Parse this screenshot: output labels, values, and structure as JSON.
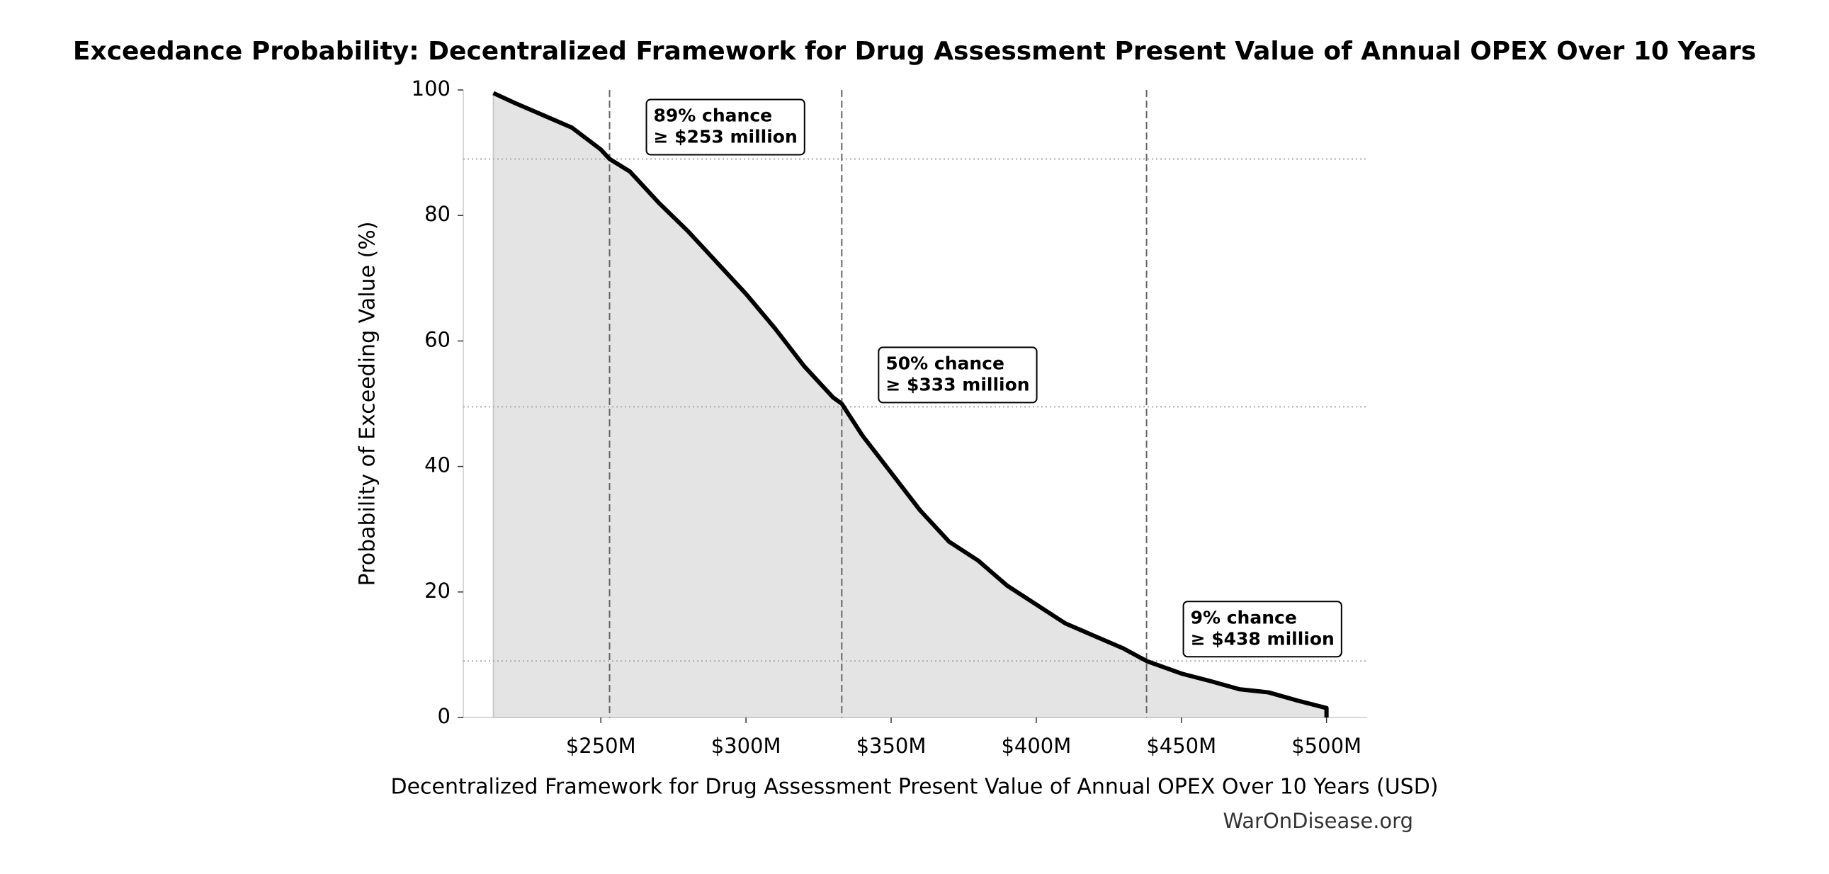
{
  "chart_data": {
    "type": "area-line",
    "title": "Exceedance Probability: Decentralized Framework for Drug Assessment Present Value of Annual OPEX Over 10 Years",
    "x_label": "Decentralized Framework for Drug Assessment Present Value of Annual OPEX Over 10 Years (USD)",
    "y_label": "Probability of Exceeding Value (%)",
    "source": "WarOnDisease.org",
    "x": [
      213,
      220,
      230,
      240,
      250,
      253,
      260,
      270,
      280,
      290,
      300,
      310,
      320,
      330,
      333,
      340,
      350,
      360,
      370,
      380,
      390,
      400,
      410,
      420,
      430,
      438,
      450,
      460,
      470,
      480,
      490,
      500,
      500
    ],
    "values": [
      99.5,
      98,
      96,
      94,
      90.5,
      89,
      87,
      82,
      77.5,
      72.5,
      67.5,
      62,
      56,
      51,
      50,
      45,
      39,
      33,
      28,
      25,
      21,
      18,
      15,
      13,
      11,
      9,
      7,
      5.8,
      4.5,
      4,
      2.7,
      1.5,
      0
    ],
    "color": "#000000",
    "fill": "#e4e4e4",
    "xlim": [
      202.6,
      514
    ],
    "ylim": [
      0,
      100
    ],
    "xticks": [
      {
        "value": 250,
        "label": "$250M"
      },
      {
        "value": 300,
        "label": "$300M"
      },
      {
        "value": 350,
        "label": "$350M"
      },
      {
        "value": 400,
        "label": "$400M"
      },
      {
        "value": 450,
        "label": "$450M"
      },
      {
        "value": 500,
        "label": "$500M"
      }
    ],
    "yticks": [
      0,
      20,
      40,
      60,
      80,
      100
    ],
    "annotations": [
      {
        "x": 253,
        "y": 89,
        "lines": [
          "89% chance",
          "≥ $253 million"
        ]
      },
      {
        "x": 333,
        "y": 49.5,
        "lines": [
          "50% chance",
          "≥ $333 million"
        ]
      },
      {
        "x": 438,
        "y": 9,
        "lines": [
          "9% chance",
          "≥ $438 million"
        ]
      }
    ]
  }
}
